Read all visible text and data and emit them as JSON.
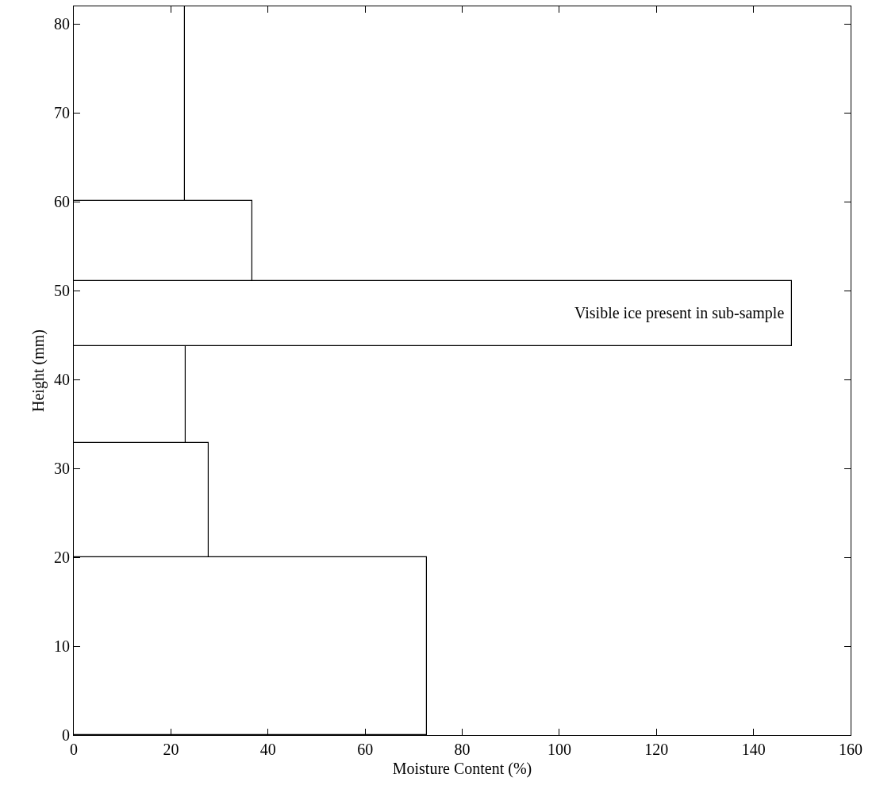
{
  "chart_data": {
    "type": "histogram",
    "orientation": "horizontal",
    "xlabel": "Moisture Content (%)",
    "ylabel": "Height (mm)",
    "bins": [
      0,
      20,
      32.9,
      43.8,
      51.1,
      60.1,
      82
    ],
    "values": [
      72.7,
      27.8,
      23.1,
      147.9,
      36.8,
      22.8
    ],
    "color": "#ffffff",
    "xlim": [
      0,
      160
    ],
    "xticks": [
      0,
      20,
      40,
      60,
      80,
      100,
      120,
      140,
      160
    ],
    "ylim": [
      0,
      82
    ],
    "yticks": [
      0,
      10,
      20,
      30,
      40,
      50,
      60,
      70,
      80
    ],
    "annotations": [
      {
        "text": "Visible ice present in sub-sample",
        "x": 147.9,
        "y": 47.45
      }
    ]
  }
}
